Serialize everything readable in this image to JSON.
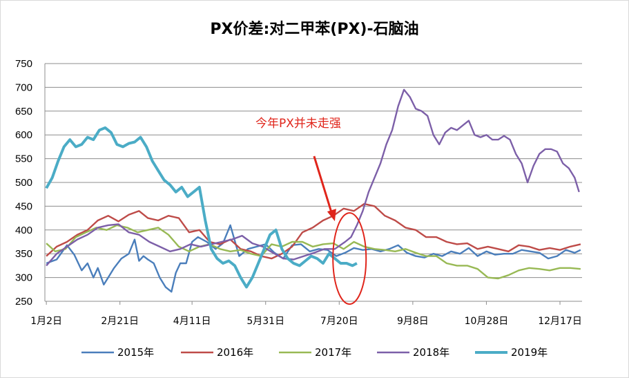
{
  "chart_data": {
    "type": "line",
    "title": "PX价差:对二甲苯(PX)-石脑油",
    "ylim": [
      250,
      750
    ],
    "yticks": [
      250,
      300,
      350,
      400,
      450,
      500,
      550,
      600,
      650,
      700,
      750
    ],
    "xlim": [
      0,
      365
    ],
    "xticks": [
      {
        "label": "1月2日",
        "day": 1
      },
      {
        "label": "2月21日",
        "day": 51
      },
      {
        "label": "4月11日",
        "day": 100
      },
      {
        "label": "5月31日",
        "day": 150
      },
      {
        "label": "7月20日",
        "day": 200
      },
      {
        "label": "9月8日",
        "day": 250
      },
      {
        "label": "10月28日",
        "day": 300
      },
      {
        "label": "12月17日",
        "day": 350
      }
    ],
    "grid": true,
    "legend_position": "bottom",
    "annotation": {
      "text": "今年PX并未走强",
      "arrow_to_day": 197,
      "circle_center_day": 207,
      "circle_center_value": 340
    },
    "series": [
      {
        "name": "2015年",
        "color": "#4a7ebb",
        "x": [
          1,
          8,
          15,
          20,
          25,
          29,
          33,
          36,
          40,
          43,
          47,
          52,
          57,
          61,
          64,
          67,
          70,
          74,
          78,
          82,
          86,
          89,
          92,
          96,
          100,
          104,
          110,
          116,
          121,
          126,
          132,
          138,
          144,
          150,
          156,
          162,
          168,
          174,
          180,
          186,
          192,
          198,
          204,
          210,
          216,
          222,
          228,
          234,
          240,
          246,
          252,
          258,
          264,
          270,
          276,
          282,
          288,
          294,
          300,
          306,
          312,
          318,
          324,
          330,
          336,
          342,
          348,
          354,
          360,
          364
        ],
        "y": [
          330,
          338,
          368,
          348,
          315,
          330,
          300,
          320,
          285,
          300,
          320,
          340,
          350,
          380,
          335,
          345,
          338,
          330,
          300,
          280,
          270,
          310,
          330,
          330,
          375,
          385,
          375,
          360,
          372,
          410,
          345,
          360,
          365,
          370,
          352,
          340,
          368,
          370,
          355,
          360,
          358,
          345,
          352,
          362,
          358,
          360,
          355,
          360,
          368,
          352,
          345,
          342,
          350,
          345,
          355,
          350,
          362,
          345,
          355,
          348,
          350,
          350,
          358,
          355,
          352,
          340,
          345,
          358,
          352,
          358
        ]
      },
      {
        "name": "2016年",
        "color": "#be4b48",
        "x": [
          1,
          8,
          15,
          22,
          29,
          36,
          43,
          50,
          57,
          64,
          70,
          77,
          84,
          91,
          98,
          105,
          112,
          119,
          126,
          133,
          140,
          147,
          154,
          161,
          168,
          175,
          182,
          189,
          196,
          203,
          210,
          217,
          224,
          231,
          238,
          245,
          252,
          259,
          266,
          273,
          280,
          287,
          294,
          301,
          308,
          315,
          322,
          329,
          336,
          343,
          350,
          357,
          364
        ],
        "y": [
          345,
          365,
          375,
          390,
          400,
          420,
          430,
          418,
          432,
          440,
          425,
          420,
          430,
          425,
          395,
          400,
          375,
          370,
          380,
          360,
          355,
          345,
          340,
          350,
          365,
          395,
          405,
          420,
          430,
          445,
          440,
          455,
          450,
          430,
          420,
          405,
          400,
          385,
          385,
          375,
          370,
          372,
          360,
          365,
          360,
          355,
          368,
          365,
          358,
          362,
          358,
          365,
          370
        ]
      },
      {
        "name": "2017年",
        "color": "#98b954",
        "x": [
          1,
          7,
          14,
          21,
          28,
          35,
          42,
          49,
          56,
          63,
          70,
          77,
          84,
          91,
          98,
          105,
          112,
          119,
          126,
          133,
          140,
          147,
          154,
          161,
          168,
          175,
          182,
          189,
          196,
          203,
          210,
          217,
          224,
          231,
          238,
          245,
          252,
          259,
          266,
          273,
          280,
          287,
          294,
          301,
          308,
          315,
          322,
          329,
          336,
          343,
          350,
          357,
          364
        ],
        "y": [
          372,
          355,
          360,
          385,
          395,
          405,
          400,
          410,
          405,
          395,
          400,
          405,
          390,
          365,
          355,
          365,
          370,
          360,
          355,
          358,
          350,
          345,
          370,
          365,
          375,
          375,
          365,
          370,
          372,
          360,
          375,
          365,
          360,
          358,
          355,
          360,
          352,
          345,
          345,
          330,
          325,
          325,
          318,
          300,
          298,
          305,
          315,
          320,
          318,
          315,
          320,
          320,
          318
        ]
      },
      {
        "name": "2018年",
        "color": "#7c5fa8",
        "x": [
          1,
          8,
          15,
          22,
          29,
          36,
          43,
          50,
          57,
          64,
          71,
          78,
          85,
          92,
          99,
          106,
          113,
          120,
          127,
          134,
          141,
          148,
          155,
          162,
          169,
          176,
          183,
          190,
          197,
          204,
          208,
          212,
          216,
          220,
          224,
          228,
          232,
          236,
          240,
          244,
          248,
          252,
          256,
          260,
          264,
          268,
          272,
          276,
          280,
          284,
          288,
          292,
          296,
          300,
          304,
          308,
          312,
          316,
          320,
          324,
          328,
          332,
          336,
          340,
          344,
          348,
          352,
          356,
          360,
          363
        ],
        "y": [
          325,
          350,
          365,
          380,
          390,
          405,
          410,
          412,
          395,
          390,
          375,
          365,
          355,
          360,
          370,
          365,
          370,
          375,
          380,
          388,
          372,
          365,
          352,
          340,
          338,
          345,
          352,
          360,
          360,
          375,
          385,
          410,
          440,
          480,
          510,
          540,
          580,
          610,
          660,
          695,
          680,
          655,
          650,
          640,
          600,
          580,
          605,
          615,
          610,
          620,
          630,
          600,
          595,
          600,
          590,
          590,
          598,
          590,
          560,
          540,
          500,
          535,
          560,
          570,
          570,
          565,
          540,
          530,
          510,
          480
        ]
      },
      {
        "name": "2019年",
        "color": "#4bacc6",
        "x": [
          1,
          5,
          9,
          13,
          17,
          21,
          25,
          29,
          33,
          37,
          41,
          45,
          49,
          53,
          57,
          61,
          65,
          69,
          73,
          77,
          81,
          85,
          89,
          93,
          97,
          101,
          105,
          109,
          113,
          117,
          121,
          125,
          129,
          133,
          137,
          141,
          145,
          149,
          153,
          157,
          161,
          165,
          169,
          173,
          177,
          181,
          185,
          189,
          193,
          197,
          201,
          205,
          209,
          212
        ],
        "y": [
          488,
          510,
          545,
          575,
          590,
          575,
          580,
          595,
          590,
          610,
          615,
          605,
          580,
          575,
          582,
          585,
          595,
          575,
          545,
          525,
          505,
          495,
          480,
          490,
          470,
          480,
          490,
          420,
          360,
          340,
          330,
          335,
          325,
          300,
          280,
          300,
          330,
          360,
          390,
          400,
          360,
          340,
          330,
          325,
          335,
          345,
          340,
          330,
          350,
          340,
          330,
          330,
          325,
          330
        ]
      }
    ]
  }
}
